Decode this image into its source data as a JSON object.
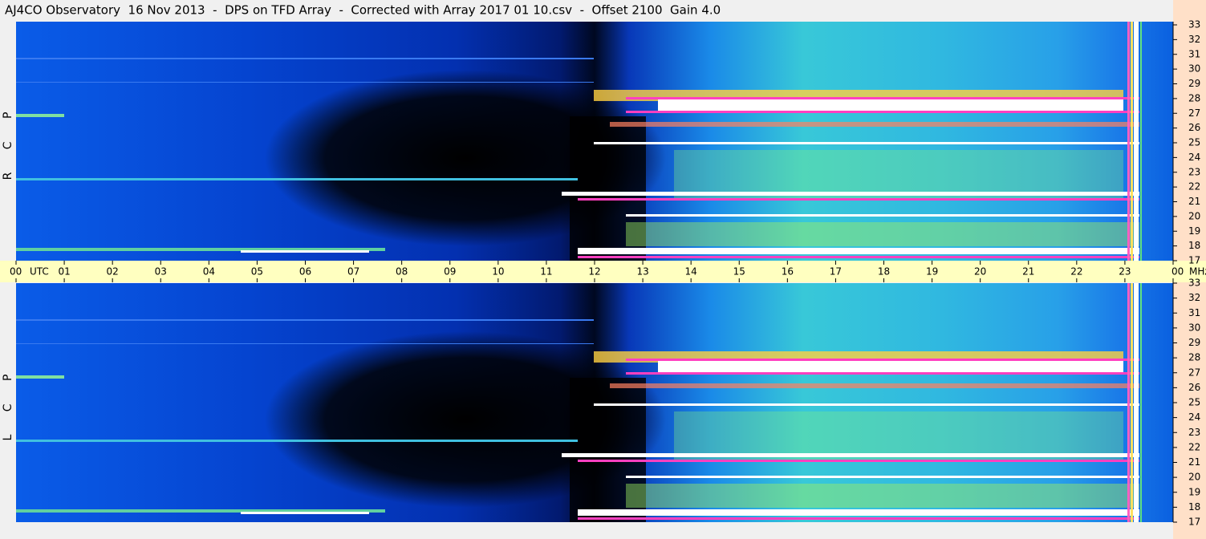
{
  "chart_data": {
    "type": "spectrogram",
    "title": "AJ4CO Observatory  16 Nov 2013  -  DPS on TFD Array  -  Corrected with Array 2017 01 10.csv  -  Offset 2100  Gain 4.0",
    "panels": [
      {
        "label": "R C P"
      },
      {
        "label": "L C P"
      }
    ],
    "x_label": "UTC",
    "y_label": "MHz",
    "xlim": [
      0,
      24
    ],
    "xticks": [
      {
        "value": 0,
        "label": "00"
      },
      {
        "value": 1,
        "label": "01"
      },
      {
        "value": 2,
        "label": "02"
      },
      {
        "value": 3,
        "label": "03"
      },
      {
        "value": 4,
        "label": "04"
      },
      {
        "value": 5,
        "label": "05"
      },
      {
        "value": 6,
        "label": "06"
      },
      {
        "value": 7,
        "label": "07"
      },
      {
        "value": 8,
        "label": "08"
      },
      {
        "value": 9,
        "label": "09"
      },
      {
        "value": 10,
        "label": "10"
      },
      {
        "value": 11,
        "label": "11"
      },
      {
        "value": 12,
        "label": "12"
      },
      {
        "value": 13,
        "label": "13"
      },
      {
        "value": 14,
        "label": "14"
      },
      {
        "value": 15,
        "label": "15"
      },
      {
        "value": 16,
        "label": "16"
      },
      {
        "value": 17,
        "label": "17"
      },
      {
        "value": 18,
        "label": "18"
      },
      {
        "value": 19,
        "label": "19"
      },
      {
        "value": 20,
        "label": "20"
      },
      {
        "value": 21,
        "label": "21"
      },
      {
        "value": 22,
        "label": "22"
      },
      {
        "value": 23,
        "label": "23"
      },
      {
        "value": 24,
        "label": "00"
      }
    ],
    "ylim": [
      17,
      33
    ],
    "yticks": [
      17,
      18,
      19,
      20,
      21,
      22,
      23,
      24,
      25,
      26,
      27,
      28,
      29,
      30,
      31,
      32,
      33
    ]
  }
}
